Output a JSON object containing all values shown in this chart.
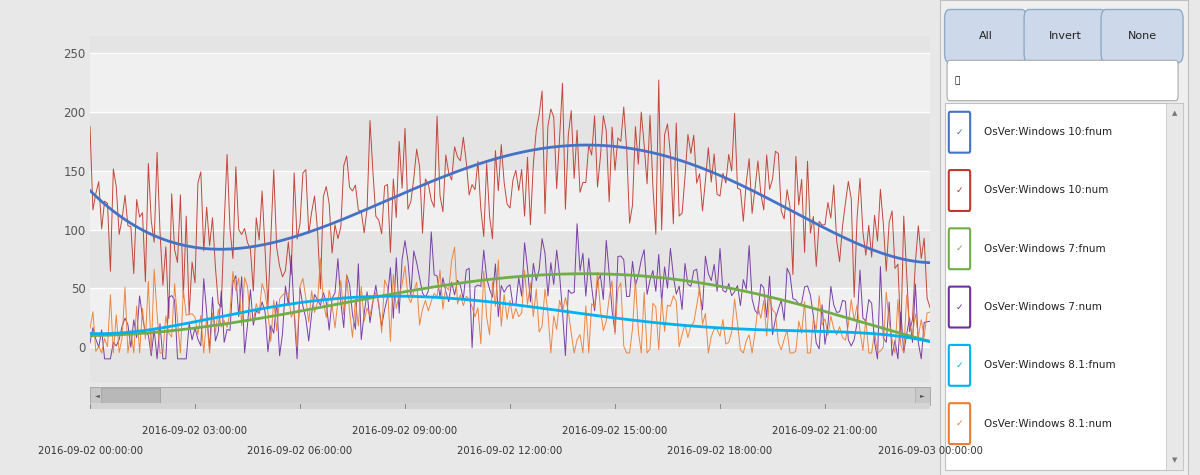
{
  "ylim": [
    -30,
    265
  ],
  "yticks": [
    0,
    50,
    100,
    150,
    200,
    250
  ],
  "x_tick_labels": [
    "2016-09-02 00:00:00",
    "2016-09-02 03:00:00",
    "2016-09-02 06:00:00",
    "2016-09-02 09:00:00",
    "2016-09-02 12:00:00",
    "2016-09-02 15:00:00",
    "2016-09-02 18:00:00",
    "2016-09-02 21:00:00",
    "2016-09-03 00:00:00"
  ],
  "x_tick_positions": [
    0,
    36,
    72,
    108,
    144,
    180,
    216,
    252,
    288
  ],
  "series": {
    "win10_fnum_color": "#4472C4",
    "win10_num_color": "#C0392B",
    "win7_fnum_color": "#70AD47",
    "win7_num_color": "#7030A0",
    "win81_fnum_color": "#00B0F0",
    "win81_num_color": "#ED7D31"
  },
  "legend_labels": [
    "OsVer:Windows 10:fnum",
    "OsVer:Windows 10:num",
    "OsVer:Windows 7:fnum",
    "OsVer:Windows 7:num",
    "OsVer:Windows 8.1:fnum",
    "OsVer:Windows 8.1:num"
  ],
  "legend_colors": [
    "#4472C4",
    "#C0392B",
    "#70AD47",
    "#7030A0",
    "#00B0F0",
    "#ED7D31"
  ],
  "fig_bg": "#e8e8e8",
  "plot_bg_light": "#f0f0f0",
  "plot_bg_dark": "#e0e0e0",
  "band_light": "#f0f0f0",
  "band_dark": "#e0e0e0"
}
